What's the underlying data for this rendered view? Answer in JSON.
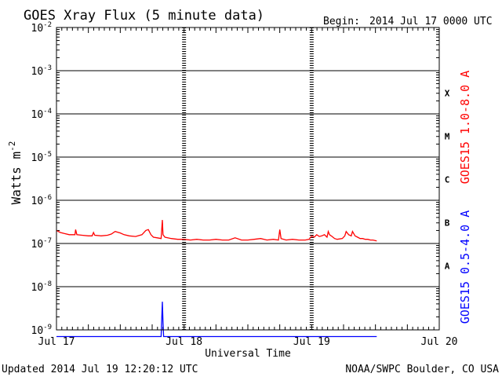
{
  "header": {
    "title": "GOES Xray Flux (5 minute data)",
    "begin_label": "Begin:",
    "begin_value": "2014 Jul 17 0000 UTC"
  },
  "footer": {
    "updated": "Updated 2014 Jul 19 12:20:12 UTC",
    "credit": "NOAA/SWPC Boulder, CO USA"
  },
  "chart_data": {
    "type": "line",
    "title": "GOES Xray Flux (5 minute data)",
    "xlabel": "Universal Time",
    "ylabel_base": "Watts m",
    "ylabel_exp": "-2",
    "y_scale": "log",
    "ylim": [
      1e-09,
      0.01
    ],
    "xlim_days": [
      0,
      3
    ],
    "x_ticks": [
      {
        "day": 0,
        "label": "Jul 17"
      },
      {
        "day": 1,
        "label": "Jul 18"
      },
      {
        "day": 2,
        "label": "Jul 19"
      },
      {
        "day": 3,
        "label": "Jul 20"
      }
    ],
    "y_ticks": [
      {
        "exp": -9,
        "base": "10",
        "sup": "-9"
      },
      {
        "exp": -8,
        "base": "10",
        "sup": "-8"
      },
      {
        "exp": -7,
        "base": "10",
        "sup": "-7"
      },
      {
        "exp": -6,
        "base": "10",
        "sup": "-6"
      },
      {
        "exp": -5,
        "base": "10",
        "sup": "-5"
      },
      {
        "exp": -4,
        "base": "10",
        "sup": "-4"
      },
      {
        "exp": -3,
        "base": "10",
        "sup": "-3"
      },
      {
        "exp": -2,
        "base": "10",
        "sup": "-2"
      }
    ],
    "flare_classes": [
      {
        "label": "A",
        "exp": -8
      },
      {
        "label": "B",
        "exp": -7
      },
      {
        "label": "C",
        "exp": -6
      },
      {
        "label": "M",
        "exp": -5
      },
      {
        "label": "X",
        "exp": -4
      }
    ],
    "grid": "horizontal decades",
    "series": [
      {
        "name": "GOES15 1.0-8.0 A",
        "color": "#ff0000",
        "points": [
          [
            0.0,
            2e-07
          ],
          [
            0.03,
            1.8e-07
          ],
          [
            0.06,
            1.7e-07
          ],
          [
            0.1,
            1.6e-07
          ],
          [
            0.13,
            1.6e-07
          ],
          [
            0.145,
            1.6e-07
          ],
          [
            0.15,
            2.1e-07
          ],
          [
            0.16,
            1.6e-07
          ],
          [
            0.2,
            1.55e-07
          ],
          [
            0.25,
            1.5e-07
          ],
          [
            0.28,
            1.5e-07
          ],
          [
            0.29,
            1.8e-07
          ],
          [
            0.3,
            1.55e-07
          ],
          [
            0.35,
            1.5e-07
          ],
          [
            0.4,
            1.55e-07
          ],
          [
            0.43,
            1.65e-07
          ],
          [
            0.46,
            1.9e-07
          ],
          [
            0.5,
            1.75e-07
          ],
          [
            0.53,
            1.6e-07
          ],
          [
            0.57,
            1.5e-07
          ],
          [
            0.62,
            1.45e-07
          ],
          [
            0.67,
            1.6e-07
          ],
          [
            0.7,
            2e-07
          ],
          [
            0.72,
            2.1e-07
          ],
          [
            0.74,
            1.6e-07
          ],
          [
            0.76,
            1.4e-07
          ],
          [
            0.79,
            1.35e-07
          ],
          [
            0.82,
            1.3e-07
          ],
          [
            0.83,
            3.5e-07
          ],
          [
            0.835,
            1.6e-07
          ],
          [
            0.85,
            1.4e-07
          ],
          [
            0.9,
            1.3e-07
          ],
          [
            0.95,
            1.25e-07
          ],
          [
            1.0,
            1.25e-07
          ],
          [
            1.05,
            1.2e-07
          ],
          [
            1.1,
            1.25e-07
          ],
          [
            1.15,
            1.2e-07
          ],
          [
            1.2,
            1.2e-07
          ],
          [
            1.25,
            1.25e-07
          ],
          [
            1.3,
            1.2e-07
          ],
          [
            1.35,
            1.2e-07
          ],
          [
            1.4,
            1.35e-07
          ],
          [
            1.45,
            1.2e-07
          ],
          [
            1.5,
            1.2e-07
          ],
          [
            1.55,
            1.25e-07
          ],
          [
            1.6,
            1.3e-07
          ],
          [
            1.65,
            1.2e-07
          ],
          [
            1.7,
            1.25e-07
          ],
          [
            1.74,
            1.2e-07
          ],
          [
            1.75,
            2.1e-07
          ],
          [
            1.76,
            1.3e-07
          ],
          [
            1.8,
            1.2e-07
          ],
          [
            1.85,
            1.25e-07
          ],
          [
            1.9,
            1.2e-07
          ],
          [
            1.95,
            1.2e-07
          ],
          [
            1.98,
            1.25e-07
          ],
          [
            2.0,
            1.5e-07
          ],
          [
            2.02,
            1.4e-07
          ],
          [
            2.04,
            1.6e-07
          ],
          [
            2.06,
            1.45e-07
          ],
          [
            2.08,
            1.5e-07
          ],
          [
            2.1,
            1.6e-07
          ],
          [
            2.12,
            1.4e-07
          ],
          [
            2.13,
            1.9e-07
          ],
          [
            2.14,
            1.6e-07
          ],
          [
            2.16,
            1.45e-07
          ],
          [
            2.18,
            1.3e-07
          ],
          [
            2.2,
            1.25e-07
          ],
          [
            2.24,
            1.3e-07
          ],
          [
            2.26,
            1.5e-07
          ],
          [
            2.27,
            1.9e-07
          ],
          [
            2.29,
            1.6e-07
          ],
          [
            2.31,
            1.5e-07
          ],
          [
            2.32,
            1.9e-07
          ],
          [
            2.34,
            1.5e-07
          ],
          [
            2.36,
            1.4e-07
          ],
          [
            2.38,
            1.3e-07
          ],
          [
            2.4,
            1.3e-07
          ],
          [
            2.42,
            1.25e-07
          ],
          [
            2.44,
            1.25e-07
          ],
          [
            2.46,
            1.2e-07
          ],
          [
            2.48,
            1.2e-07
          ],
          [
            2.51,
            1.15e-07
          ]
        ]
      },
      {
        "name": "GOES15 0.5-4.0 A",
        "color": "#0000ff",
        "points": [
          [
            0.0,
            7e-10
          ],
          [
            0.8,
            7e-10
          ],
          [
            0.82,
            7e-10
          ],
          [
            0.83,
            4.5e-09
          ],
          [
            0.835,
            1.5e-09
          ],
          [
            0.84,
            7e-10
          ],
          [
            1.5,
            7e-10
          ],
          [
            2.51,
            7e-10
          ]
        ]
      }
    ]
  }
}
